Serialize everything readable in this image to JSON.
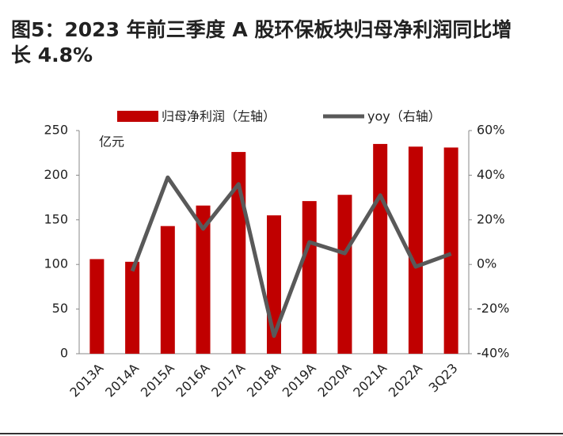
{
  "chart_data": {
    "type": "bar-line",
    "title": "图5：2023 年前三季度 A 股环保板块归母净利润同比增长 4.8%",
    "unit_label": "亿元",
    "categories": [
      "2013A",
      "2014A",
      "2015A",
      "2016A",
      "2017A",
      "2018A",
      "2019A",
      "2020A",
      "2021A",
      "2022A",
      "3Q23"
    ],
    "series": [
      {
        "name": "归母净利润（左轴）",
        "type": "bar",
        "color": "#c00000",
        "values": [
          106,
          103,
          143,
          166,
          226,
          155,
          171,
          178,
          235,
          232,
          231
        ]
      },
      {
        "name": "yoy（右轴）",
        "type": "line",
        "axis": "y2",
        "color": "#595959",
        "values": [
          null,
          -3,
          39,
          16,
          36,
          -32,
          10,
          5,
          31,
          -1,
          4.8
        ]
      }
    ],
    "ylim": [
      0,
      250
    ],
    "yticks": [
      0,
      50,
      100,
      150,
      200,
      250
    ],
    "y2lim": [
      -40,
      60
    ],
    "y2ticks": [
      {
        "value": -40,
        "label": "-40%"
      },
      {
        "value": -20,
        "label": "-20%"
      },
      {
        "value": 0,
        "label": "0%"
      },
      {
        "value": 20,
        "label": "20%"
      },
      {
        "value": 40,
        "label": "40%"
      },
      {
        "value": 60,
        "label": "60%"
      }
    ]
  }
}
